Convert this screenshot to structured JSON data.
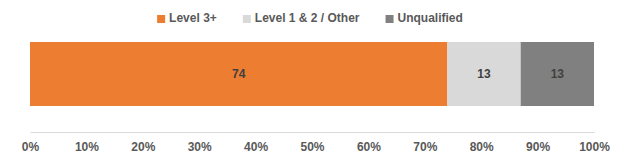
{
  "chart_data": {
    "type": "bar",
    "orientation": "horizontal",
    "stacked": true,
    "data_labels": true,
    "tick_labels": "x",
    "legend": "top",
    "categories": [
      null
    ],
    "series": [
      {
        "name": "Level 3+",
        "color": "#ed7d31",
        "values": [
          74
        ]
      },
      {
        "name": "Level 1 & 2 / Other",
        "color": "#d9d9d9",
        "values": [
          13
        ]
      },
      {
        "name": "Unqualified",
        "color": "#808080",
        "values": [
          13
        ]
      }
    ],
    "xlim": [
      0,
      100
    ],
    "xticks": [
      {
        "value": 0,
        "label": "0%"
      },
      {
        "value": 10,
        "label": "10%"
      },
      {
        "value": 20,
        "label": "20%"
      },
      {
        "value": 30,
        "label": "30%"
      },
      {
        "value": 40,
        "label": "40%"
      },
      {
        "value": 50,
        "label": "50%"
      },
      {
        "value": 60,
        "label": "60%"
      },
      {
        "value": 70,
        "label": "70%"
      },
      {
        "value": 80,
        "label": "80%"
      },
      {
        "value": 90,
        "label": "90%"
      },
      {
        "value": 100,
        "label": "100%"
      }
    ]
  }
}
